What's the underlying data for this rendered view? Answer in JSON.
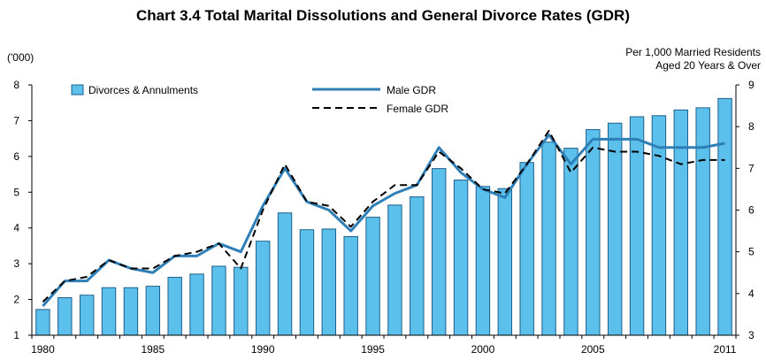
{
  "chart_data": {
    "type": "bar+line",
    "title": "Chart 3.4  Total Marital Dissolutions and General Divorce Rates (GDR)",
    "left_axis_unit": "('000)",
    "right_axis_unit_line1": "Per 1,000 Married Residents",
    "right_axis_unit_line2": "Aged 20 Years & Over",
    "years": [
      1980,
      1981,
      1982,
      1983,
      1984,
      1985,
      1986,
      1987,
      1988,
      1989,
      1990,
      1991,
      1992,
      1993,
      1994,
      1995,
      1996,
      1997,
      1998,
      1999,
      2000,
      2001,
      2002,
      2003,
      2004,
      2005,
      2006,
      2007,
      2008,
      2009,
      2010,
      2011
    ],
    "x_tick_labels": [
      "1980",
      "1985",
      "1990",
      "1995",
      "2000",
      "2005",
      "2011"
    ],
    "ylim_left": [
      1,
      8
    ],
    "yticks_left": [
      "1",
      "2",
      "3",
      "4",
      "5",
      "6",
      "7",
      "8"
    ],
    "ylim_right": [
      3,
      9
    ],
    "yticks_right": [
      "3",
      "4",
      "5",
      "6",
      "7",
      "8",
      "9"
    ],
    "series": [
      {
        "name": "Divorces & Annulments",
        "kind": "bar",
        "axis": "left",
        "color": "#5bc0eb",
        "values": [
          1.72,
          2.05,
          2.12,
          2.33,
          2.33,
          2.37,
          2.62,
          2.71,
          2.93,
          2.9,
          3.63,
          4.42,
          3.95,
          3.97,
          3.76,
          4.3,
          4.64,
          4.87,
          5.66,
          5.34,
          5.16,
          5.1,
          5.83,
          6.4,
          6.23,
          6.75,
          6.93,
          7.11,
          7.14,
          7.3,
          7.36,
          7.62
        ]
      },
      {
        "name": "Male GDR",
        "kind": "line",
        "axis": "right",
        "color": "#2e7fb8",
        "values": [
          3.7,
          4.3,
          4.3,
          4.8,
          4.6,
          4.5,
          4.9,
          4.9,
          5.2,
          5.0,
          6.1,
          7.0,
          6.2,
          6.0,
          5.5,
          6.1,
          6.4,
          6.6,
          7.5,
          6.9,
          6.5,
          6.3,
          7.1,
          7.8,
          7.1,
          7.7,
          7.7,
          7.7,
          7.5,
          7.5,
          7.5,
          7.6
        ]
      },
      {
        "name": "Female GDR",
        "kind": "line",
        "dash": true,
        "axis": "right",
        "color": "#000000",
        "values": [
          3.8,
          4.3,
          4.4,
          4.8,
          4.6,
          4.6,
          4.9,
          5.0,
          5.2,
          4.6,
          6.0,
          7.1,
          6.2,
          6.1,
          5.6,
          6.2,
          6.6,
          6.6,
          7.4,
          7.0,
          6.5,
          6.4,
          7.1,
          7.9,
          6.9,
          7.5,
          7.4,
          7.4,
          7.3,
          7.1,
          7.2,
          7.2
        ]
      }
    ]
  }
}
